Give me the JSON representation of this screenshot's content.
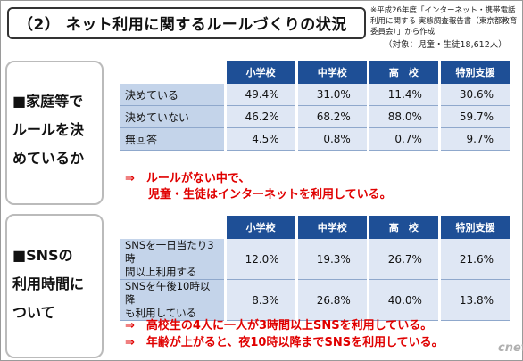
{
  "title": "（2） ネット利用に関するルールづくりの状況",
  "source_note": "※平成26年度「インターネット・携帯電話利用に関する 実態調査報告書（東京都教育委員会）」から作成",
  "target_note": "（対象：児童・生徒18,612人）",
  "columns": [
    "小学校",
    "中学校",
    "高　校",
    "特別支援"
  ],
  "section1": {
    "label_lines": [
      "■家庭等で",
      "ルールを決",
      "めているか"
    ],
    "rows": [
      {
        "label": "決めている",
        "values": [
          "49.4%",
          "31.0%",
          "11.4%",
          "30.6%"
        ]
      },
      {
        "label": "決めていない",
        "values": [
          "46.2%",
          "68.2%",
          "88.0%",
          "59.7%"
        ]
      },
      {
        "label": "無回答",
        "values": [
          "4.5%",
          "0.8%",
          "0.7%",
          "9.7%"
        ]
      }
    ],
    "notes": [
      "⇒　ルールがない中で、",
      "　　児童・生徒はインターネットを利用している。"
    ]
  },
  "section2": {
    "label_lines": [
      "■SNSの",
      "利用時間に",
      "ついて"
    ],
    "rows": [
      {
        "label_lines": [
          "SNSを一日当たり3時",
          "間以上利用する"
        ],
        "values": [
          "12.0%",
          "19.3%",
          "26.7%",
          "21.6%"
        ]
      },
      {
        "label_lines": [
          "SNSを午後10時以降",
          "も利用している"
        ],
        "values": [
          "8.3%",
          "26.8%",
          "40.0%",
          "13.8%"
        ]
      }
    ],
    "notes": [
      "⇒　高校生の4人に一人が3時間以上SNSを利用している。",
      "⇒　年齢が上がると、夜10時以降までSNSを利用している。"
    ]
  },
  "logo_text": "cnet"
}
